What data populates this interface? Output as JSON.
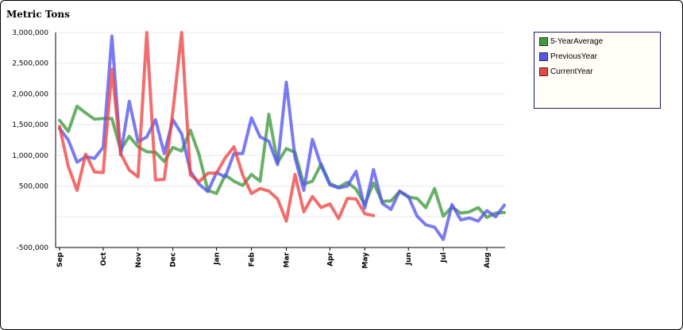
{
  "chart_data": {
    "type": "line",
    "ylabel": "Metric Tons",
    "ylim": [
      -500000,
      3000000
    ],
    "yticks": [
      {
        "value": 3000000,
        "label": "3,000,000"
      },
      {
        "value": 2500000,
        "label": "2,500,000"
      },
      {
        "value": 2000000,
        "label": "2,000,000"
      },
      {
        "value": 1500000,
        "label": "1,500,000"
      },
      {
        "value": 1000000,
        "label": "1,000,000"
      },
      {
        "value": 500000,
        "label": "500,000"
      },
      {
        "value": -500000,
        "label": "-500,000"
      }
    ],
    "grid": true,
    "legend_position": "top-right",
    "x_count": 52,
    "xticks": [
      {
        "index": 0,
        "label": "Sep"
      },
      {
        "index": 5,
        "label": "Oct"
      },
      {
        "index": 9,
        "label": "Nov"
      },
      {
        "index": 13,
        "label": "Dec"
      },
      {
        "index": 18,
        "label": "Jan"
      },
      {
        "index": 22,
        "label": "Feb"
      },
      {
        "index": 26,
        "label": "Mar"
      },
      {
        "index": 31,
        "label": "Apr"
      },
      {
        "index": 35,
        "label": "May"
      },
      {
        "index": 40,
        "label": "Jun"
      },
      {
        "index": 44,
        "label": "Jul"
      },
      {
        "index": 49,
        "label": "Aug"
      }
    ],
    "series": [
      {
        "name": "5-YearAverage",
        "color": "#3d9a3d",
        "values": [
          1570000,
          1390000,
          1800000,
          1690000,
          1590000,
          1600000,
          1600000,
          1090000,
          1310000,
          1140000,
          1060000,
          1050000,
          900000,
          1130000,
          1070000,
          1410000,
          1010000,
          430000,
          380000,
          680000,
          580000,
          510000,
          690000,
          580000,
          1670000,
          880000,
          1110000,
          1050000,
          530000,
          580000,
          860000,
          540000,
          480000,
          560000,
          450000,
          200000,
          550000,
          250000,
          260000,
          410000,
          320000,
          300000,
          150000,
          460000,
          10000,
          160000,
          60000,
          80000,
          150000,
          -10000,
          60000,
          70000
        ]
      },
      {
        "name": "PreviousYear",
        "color": "#5555ee",
        "values": [
          1440000,
          1250000,
          890000,
          980000,
          950000,
          1130000,
          2940000,
          1010000,
          1880000,
          1220000,
          1300000,
          1580000,
          1030000,
          1580000,
          1350000,
          740000,
          530000,
          410000,
          720000,
          650000,
          1030000,
          1030000,
          1610000,
          1300000,
          1230000,
          850000,
          2190000,
          960000,
          430000,
          1260000,
          830000,
          520000,
          470000,
          500000,
          740000,
          140000,
          770000,
          220000,
          120000,
          420000,
          330000,
          10000,
          -130000,
          -170000,
          -370000,
          200000,
          -50000,
          -20000,
          -70000,
          100000,
          0,
          190000
        ]
      },
      {
        "name": "CurrentYear",
        "color": "#ee4444",
        "values": [
          1470000,
          820000,
          430000,
          1020000,
          730000,
          720000,
          2400000,
          1030000,
          760000,
          650000,
          3000000,
          600000,
          610000,
          1720000,
          3000000,
          680000,
          570000,
          710000,
          710000,
          960000,
          1140000,
          680000,
          380000,
          460000,
          420000,
          290000,
          -70000,
          690000,
          80000,
          330000,
          150000,
          210000,
          -30000,
          300000,
          290000,
          50000,
          20000
        ]
      }
    ]
  }
}
